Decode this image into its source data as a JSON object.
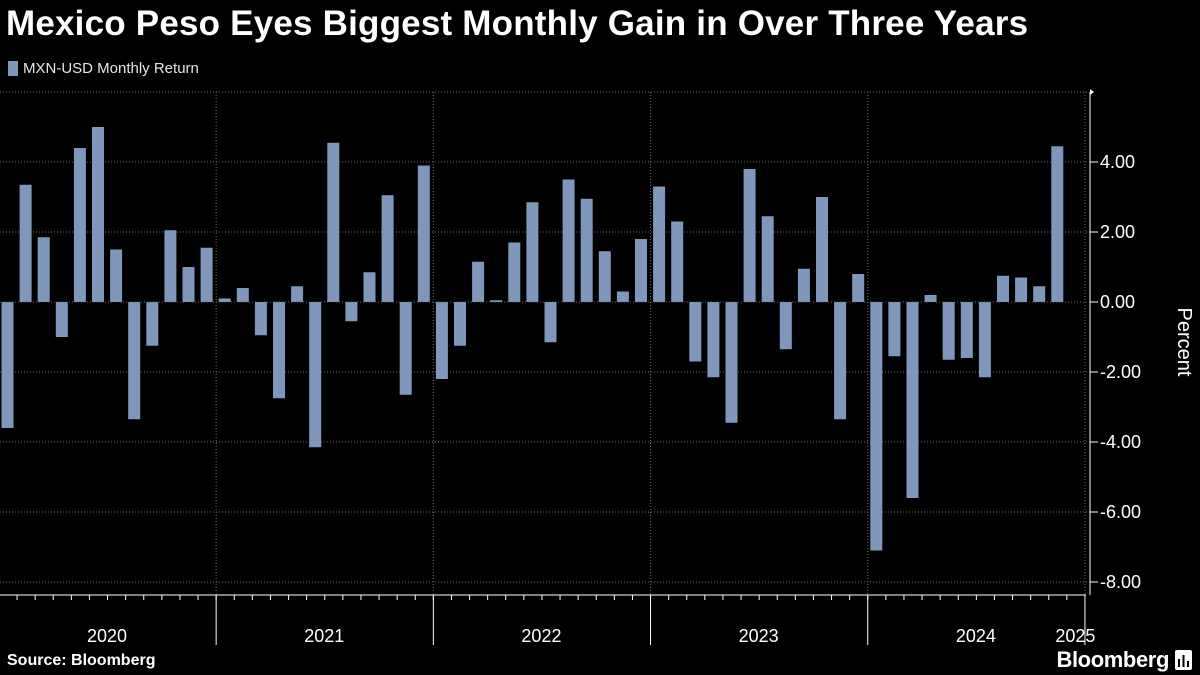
{
  "title": "Mexico Peso Eyes Biggest Monthly Gain in Over Three Years",
  "legend_label": "MXN-USD Monthly Return",
  "source": "Source: Bloomberg",
  "brand": "Bloomberg",
  "colors": {
    "bar": "#7f97ba",
    "background": "#000000",
    "grid": "#6b6b6b",
    "axis": "#ffffff"
  },
  "chart_data": {
    "type": "bar",
    "series": [
      {
        "name": "MXN-USD Monthly Return",
        "start": "2020-01",
        "values": [
          -3.6,
          3.35,
          1.85,
          -1.0,
          4.4,
          5.0,
          1.5,
          -3.35,
          -1.25,
          2.05,
          1.0,
          1.55,
          0.1,
          0.4,
          -0.95,
          -2.75,
          0.45,
          -4.15,
          4.55,
          -0.55,
          0.85,
          3.05,
          -2.65,
          3.9,
          -2.2,
          -1.25,
          1.15,
          0.05,
          1.7,
          2.85,
          -1.15,
          3.5,
          2.95,
          1.45,
          0.3,
          1.8,
          3.3,
          2.3,
          -1.7,
          -2.15,
          -3.45,
          3.8,
          2.45,
          -1.35,
          0.95,
          3.0,
          -3.35,
          0.8,
          -7.1,
          -1.55,
          -5.6,
          0.2,
          -1.65,
          -1.6,
          -2.15,
          0.75,
          0.7,
          0.45,
          4.45
        ]
      }
    ],
    "x_labels": [
      "2020",
      "2021",
      "2022",
      "2023",
      "2024",
      "2025"
    ],
    "y_ticks": [
      "4.00",
      "2.00",
      "0.00",
      "-2.00",
      "-4.00",
      "-6.00",
      "-8.00"
    ],
    "ylabel": "Percent",
    "ylim": [
      -8.0,
      6.0
    ],
    "grid": true,
    "legend": "top-left"
  }
}
